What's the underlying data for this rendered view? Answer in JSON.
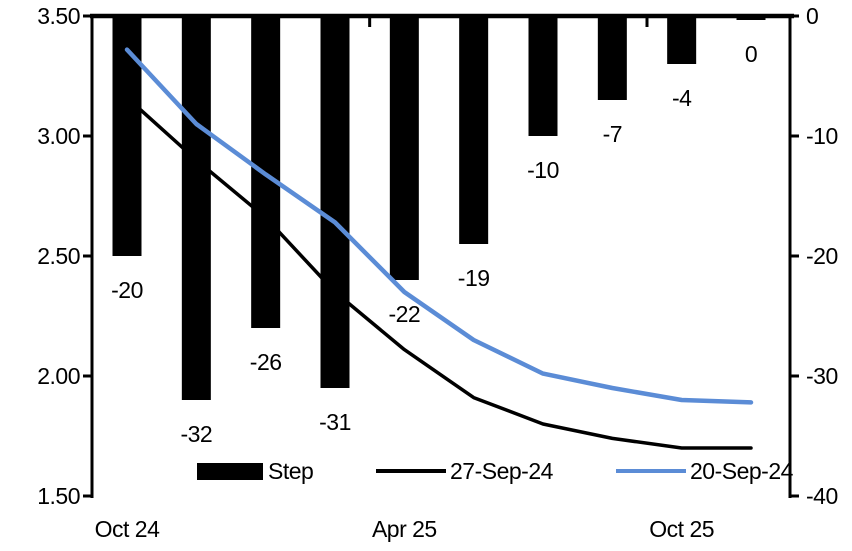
{
  "chart_data": {
    "type": "combo-bar-line",
    "background_color": "#ffffff",
    "bar_series": {
      "name": "Step",
      "axis": "right",
      "color": "#000000",
      "values": [
        -20,
        -32,
        -26,
        -31,
        -22,
        -19,
        -10,
        -7,
        -4,
        0
      ],
      "data_labels": [
        "-20",
        "-32",
        "-26",
        "-31",
        "-22",
        "-19",
        "-10",
        "-7",
        "-4",
        "0"
      ]
    },
    "line_series": [
      {
        "name": "27-Sep-24",
        "axis": "left",
        "color": "#000000",
        "stroke_width": 3.5,
        "values": [
          3.16,
          2.9,
          2.66,
          2.35,
          2.11,
          1.91,
          1.8,
          1.74,
          1.7,
          1.7
        ]
      },
      {
        "name": "20-Sep-24",
        "axis": "left",
        "color": "#5B8CD6",
        "stroke_width": 4.5,
        "values": [
          3.36,
          3.05,
          2.84,
          2.64,
          2.35,
          2.15,
          2.01,
          1.95,
          1.9,
          1.89
        ]
      }
    ],
    "left_axis": {
      "min": 1.5,
      "max": 3.5,
      "tick_labels": [
        "3.50",
        "3.00",
        "2.50",
        "2.00",
        "1.50"
      ]
    },
    "right_axis": {
      "min": -40,
      "max": 0,
      "tick_labels": [
        "0",
        "-10",
        "-20",
        "-30",
        "-40"
      ]
    },
    "x_axis": {
      "slots": 10,
      "tick_labels": [
        {
          "label": "Oct 24",
          "slot": 0
        },
        {
          "label": "Apr 25",
          "slot": 4
        },
        {
          "label": "Oct 25",
          "slot": 8
        }
      ]
    },
    "legend": {
      "position": "bottom-inside",
      "items": [
        {
          "label": "Step",
          "type": "bar",
          "color": "#000000"
        },
        {
          "label": "27-Sep-24",
          "type": "line",
          "color": "#000000"
        },
        {
          "label": "20-Sep-24",
          "type": "line",
          "color": "#5B8CD6"
        }
      ]
    },
    "grid": false,
    "title": ""
  }
}
